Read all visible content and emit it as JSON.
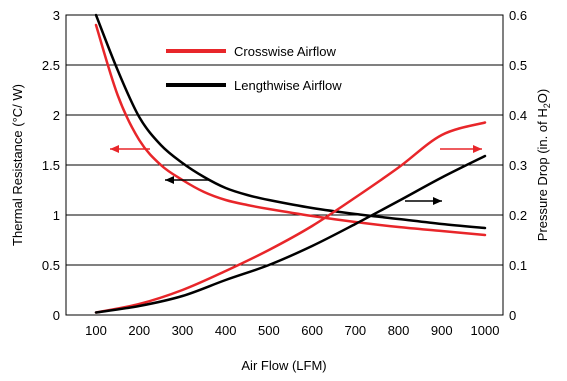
{
  "chart_data": {
    "type": "line",
    "xlabel": "Air Flow (LFM)",
    "ylabel_left": "Thermal Resistance (°C/ W)",
    "ylabel_right_prefix": "Pressure Drop (in. of H",
    "ylabel_right_sub": "2",
    "ylabel_right_suffix": "O)",
    "xlim": [
      100,
      1000
    ],
    "ylim_left": [
      0,
      3
    ],
    "ylim_right": [
      0,
      0.6
    ],
    "x_ticks": [
      "100",
      "200",
      "300",
      "400",
      "500",
      "600",
      "700",
      "800",
      "900",
      "1000"
    ],
    "y_left_ticks": [
      "0",
      "0.5",
      "1",
      "1.5",
      "2",
      "2.5",
      "3"
    ],
    "y_right_ticks": [
      "0",
      "0.1",
      "0.2",
      "0.3",
      "0.4",
      "0.5",
      "0.6"
    ],
    "grid": "horizontal",
    "legend_placement": "top-center",
    "series": [
      {
        "name": "Crosswise Airflow",
        "color": "#e8262a",
        "axis": "left",
        "x": [
          100,
          150,
          200,
          250,
          300,
          350,
          400,
          450,
          500,
          600,
          700,
          800,
          900,
          1000
        ],
        "values": [
          2.9,
          2.2,
          1.75,
          1.5,
          1.35,
          1.23,
          1.15,
          1.1,
          1.06,
          0.99,
          0.93,
          0.88,
          0.84,
          0.8
        ]
      },
      {
        "name": "Lengthwise Airflow",
        "color": "#000000",
        "axis": "left",
        "x": [
          100,
          150,
          200,
          250,
          300,
          350,
          400,
          450,
          500,
          600,
          700,
          800,
          900,
          1000
        ],
        "values": [
          3.0,
          2.45,
          1.98,
          1.7,
          1.52,
          1.38,
          1.27,
          1.2,
          1.15,
          1.07,
          1.01,
          0.96,
          0.91,
          0.87
        ]
      },
      {
        "name": "",
        "color": "#e8262a",
        "axis": "right",
        "x": [
          100,
          200,
          300,
          400,
          500,
          600,
          700,
          800,
          900,
          1000
        ],
        "values": [
          0.005,
          0.022,
          0.05,
          0.088,
          0.13,
          0.178,
          0.235,
          0.295,
          0.36,
          0.385
        ]
      },
      {
        "name": "",
        "color": "#000000",
        "axis": "right",
        "x": [
          100,
          200,
          300,
          400,
          500,
          600,
          700,
          800,
          900,
          1000
        ],
        "values": [
          0.005,
          0.018,
          0.038,
          0.07,
          0.1,
          0.138,
          0.182,
          0.228,
          0.275,
          0.318
        ]
      }
    ]
  }
}
